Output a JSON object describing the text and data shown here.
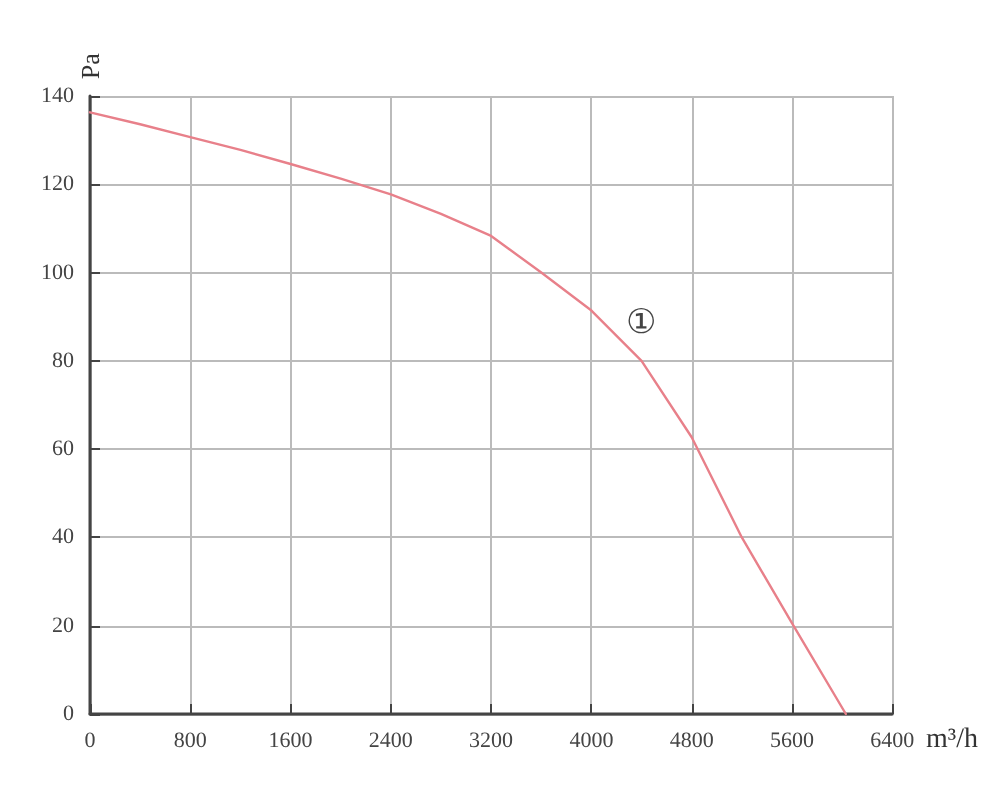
{
  "chart_data": {
    "type": "line",
    "xlabel": "m³/h",
    "ylabel": "Pa",
    "x": [
      0,
      400,
      800,
      1200,
      1600,
      2000,
      2400,
      2800,
      3200,
      3600,
      4000,
      4400,
      4800,
      5200,
      5600,
      6030
    ],
    "series": [
      {
        "color": "#e8808a",
        "values": [
          136.3,
          133.6,
          130.7,
          127.8,
          124.6,
          121.3,
          117.7,
          113.3,
          108.3,
          100,
          91.4,
          80,
          62.7,
          40,
          20.6,
          0
        ]
      }
    ],
    "xlim": [
      0,
      6400
    ],
    "xticks": [
      0,
      800,
      1600,
      2400,
      3200,
      4000,
      4800,
      5600,
      6400
    ],
    "ylim": [
      0,
      140
    ],
    "yticks": [
      0,
      20,
      40,
      60,
      80,
      100,
      120,
      140
    ],
    "grid": true,
    "marker": "none",
    "line_style": "solid",
    "annotations": [
      "①"
    ]
  }
}
